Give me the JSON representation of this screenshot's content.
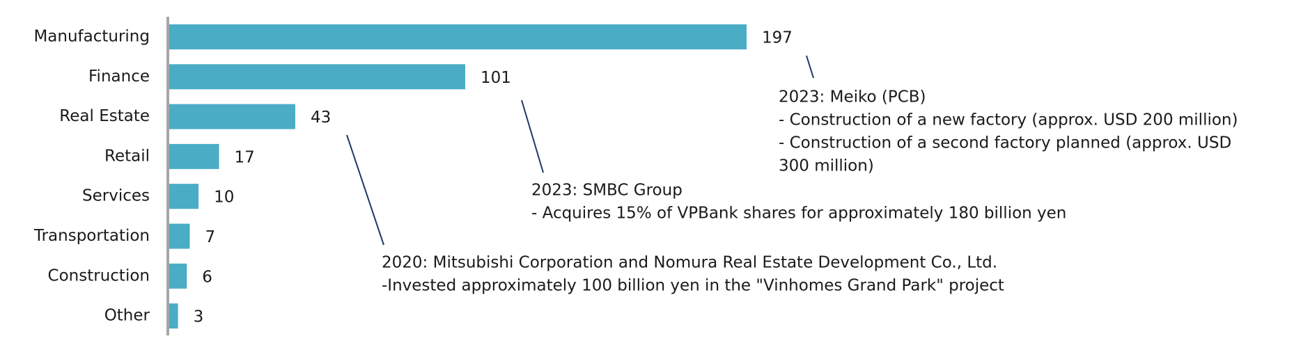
{
  "chart_data": {
    "type": "bar",
    "orientation": "horizontal",
    "categories": [
      "Manufacturing",
      "Finance",
      "Real Estate",
      "Retail",
      "Services",
      "Transportation",
      "Construction",
      "Other"
    ],
    "values": [
      197,
      101,
      43,
      17,
      10,
      7,
      6,
      3
    ],
    "color": "#4bacc6",
    "annotations": [
      {
        "lines": [
          "2023: Meiko (PCB)",
          "- Construction of a new factory (approx. USD 200 million)",
          "- Construction of a second factory planned (approx. USD",
          "300 million)"
        ]
      },
      {
        "lines": [
          "2023: SMBC Group",
          "- Acquires 15% of VPBank shares for approximately 180 billion yen"
        ]
      },
      {
        "lines": [
          "2020: Mitsubishi Corporation and Nomura Real Estate Development Co., Ltd.",
          "-Invested approximately 100 billion yen in the \"Vinhomes Grand Park\" project"
        ]
      }
    ]
  }
}
